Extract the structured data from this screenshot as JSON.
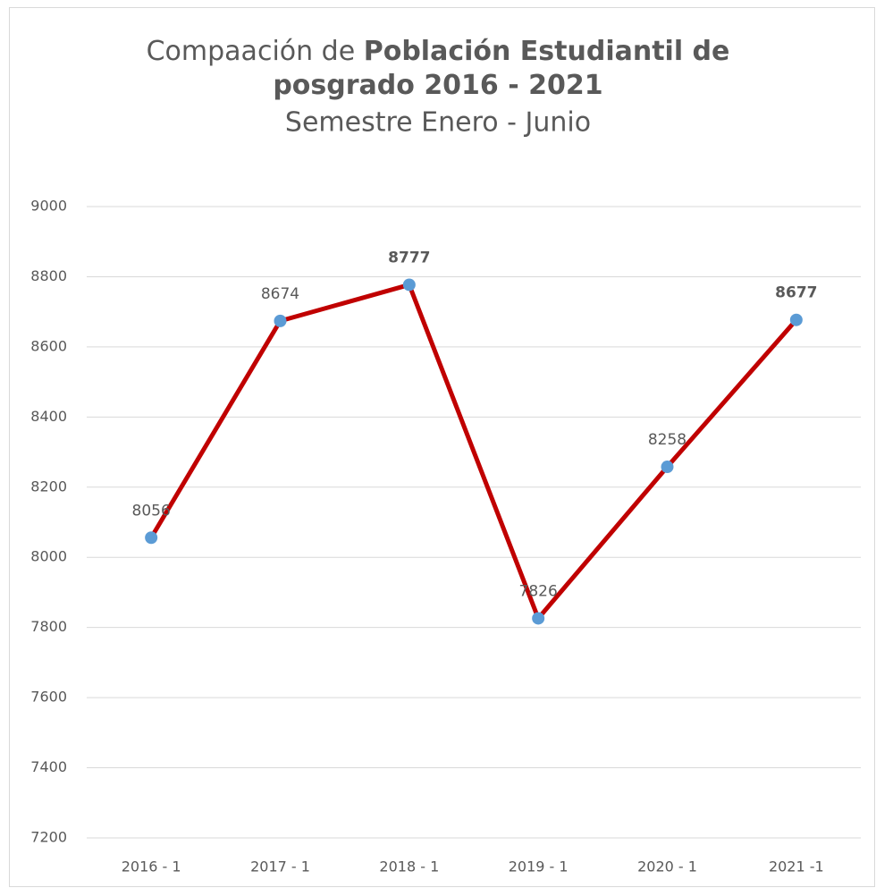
{
  "chart_data": {
    "type": "line",
    "title_lines": [
      [
        {
          "text": "Compaación de ",
          "bold": false
        },
        {
          "text": "Población Estudiantil de",
          "bold": true
        }
      ],
      [
        {
          "text": "posgrado 2016 - 2021",
          "bold": true
        }
      ]
    ],
    "subtitle": "Semestre Enero - Junio",
    "categories": [
      "2016 - 1",
      "2017 - 1",
      "2018 - 1",
      "2019 - 1",
      "2020 - 1",
      "2021 -1"
    ],
    "series": [
      {
        "color": "#c00000",
        "marker_color": "#5b9bd5",
        "values": [
          8056,
          8674,
          8777,
          7826,
          8258,
          8677
        ],
        "bold_labels": [
          false,
          false,
          true,
          false,
          false,
          true
        ]
      }
    ],
    "ylim": [
      7200,
      9000
    ],
    "yticks": [
      7200,
      7400,
      7600,
      7800,
      8000,
      8200,
      8400,
      8600,
      8800,
      9000
    ],
    "grid": true
  }
}
